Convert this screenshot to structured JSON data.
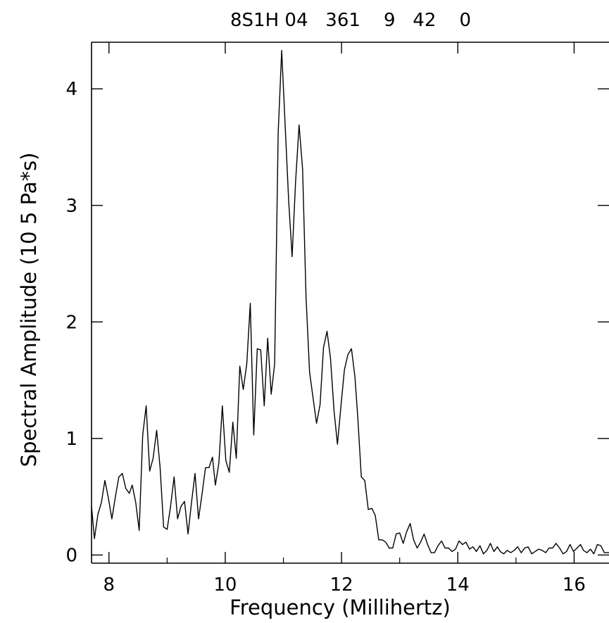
{
  "chart_data": {
    "type": "line",
    "title": "8S1H 04   361    9   42    0",
    "xlabel": "Frequency (Millihertz)",
    "ylabel": "Spectral Amplitude (10 5 Pa*s)",
    "xlim": [
      7.7,
      16.6
    ],
    "ylim": [
      -0.07,
      4.4
    ],
    "xticks": [
      8,
      10,
      12,
      14,
      16
    ],
    "yticks": [
      0,
      1,
      2,
      3,
      4
    ],
    "grid": false,
    "series": [
      {
        "x": [
          7.7,
          7.75,
          7.81,
          7.87,
          7.93,
          7.99,
          8.05,
          8.11,
          8.17,
          8.23,
          8.29,
          8.35,
          8.4,
          8.46,
          8.52,
          8.58,
          8.64,
          8.7,
          8.76,
          8.82,
          8.88,
          8.94,
          9.0,
          9.06,
          9.12,
          9.18,
          9.24,
          9.3,
          9.36,
          9.42,
          9.48,
          9.54,
          9.6,
          9.66,
          9.72,
          9.78,
          9.83,
          9.89,
          9.95,
          10.01,
          10.07,
          10.13,
          10.19,
          10.25,
          10.31,
          10.37,
          10.43,
          10.49,
          10.55,
          10.61,
          10.67,
          10.73,
          10.79,
          10.85,
          10.91,
          10.97,
          11.03,
          11.09,
          11.15,
          11.21,
          11.27,
          11.33,
          11.39,
          11.45,
          11.51,
          11.57,
          11.63,
          11.69,
          11.75,
          11.81,
          11.87,
          11.93,
          11.99,
          12.05,
          12.11,
          12.17,
          12.23,
          12.28,
          12.34,
          12.4,
          12.46,
          12.52,
          12.58,
          12.64,
          12.7,
          12.76,
          12.82,
          12.88,
          12.94,
          13.0,
          13.06,
          13.12,
          13.18,
          13.24,
          13.3,
          13.36,
          13.42,
          13.48,
          13.54,
          13.6,
          13.66,
          13.72,
          13.78,
          13.84,
          13.9,
          13.96,
          14.02,
          14.08,
          14.14,
          14.2,
          14.26,
          14.32,
          14.38,
          14.44,
          14.5,
          14.56,
          14.62,
          14.68,
          14.73,
          14.79,
          14.85,
          14.91,
          14.97,
          15.03,
          15.09,
          15.15,
          15.21,
          15.27,
          15.33,
          15.39,
          15.45,
          15.51,
          15.57,
          15.63,
          15.69,
          15.75,
          15.81,
          15.87,
          15.93,
          15.99,
          16.05,
          16.11,
          16.16,
          16.22,
          16.28,
          16.34,
          16.4,
          16.46,
          16.52,
          16.6
        ],
        "values": [
          0.42,
          0.14,
          0.35,
          0.45,
          0.64,
          0.49,
          0.31,
          0.5,
          0.67,
          0.7,
          0.57,
          0.53,
          0.6,
          0.45,
          0.21,
          1.03,
          1.28,
          0.72,
          0.83,
          1.07,
          0.75,
          0.24,
          0.22,
          0.42,
          0.67,
          0.31,
          0.42,
          0.46,
          0.18,
          0.45,
          0.7,
          0.31,
          0.52,
          0.75,
          0.75,
          0.84,
          0.6,
          0.79,
          1.28,
          0.81,
          0.71,
          1.14,
          0.83,
          1.62,
          1.42,
          1.64,
          2.16,
          1.03,
          1.77,
          1.76,
          1.28,
          1.86,
          1.38,
          1.64,
          3.62,
          4.33,
          3.69,
          3.04,
          2.56,
          3.21,
          3.69,
          3.31,
          2.21,
          1.57,
          1.35,
          1.13,
          1.29,
          1.78,
          1.92,
          1.69,
          1.24,
          0.95,
          1.28,
          1.59,
          1.72,
          1.77,
          1.53,
          1.18,
          0.67,
          0.64,
          0.39,
          0.4,
          0.34,
          0.13,
          0.13,
          0.11,
          0.06,
          0.06,
          0.18,
          0.19,
          0.1,
          0.2,
          0.27,
          0.13,
          0.06,
          0.11,
          0.18,
          0.09,
          0.02,
          0.02,
          0.08,
          0.12,
          0.06,
          0.06,
          0.03,
          0.05,
          0.12,
          0.09,
          0.11,
          0.05,
          0.07,
          0.03,
          0.08,
          0.01,
          0.04,
          0.1,
          0.03,
          0.07,
          0.03,
          0.01,
          0.04,
          0.02,
          0.04,
          0.07,
          0.02,
          0.06,
          0.07,
          0.01,
          0.03,
          0.05,
          0.04,
          0.02,
          0.06,
          0.06,
          0.1,
          0.06,
          0.01,
          0.03,
          0.09,
          0.03,
          0.06,
          0.09,
          0.04,
          0.02,
          0.05,
          0.01,
          0.09,
          0.08,
          0.02,
          0.02
        ]
      }
    ]
  }
}
